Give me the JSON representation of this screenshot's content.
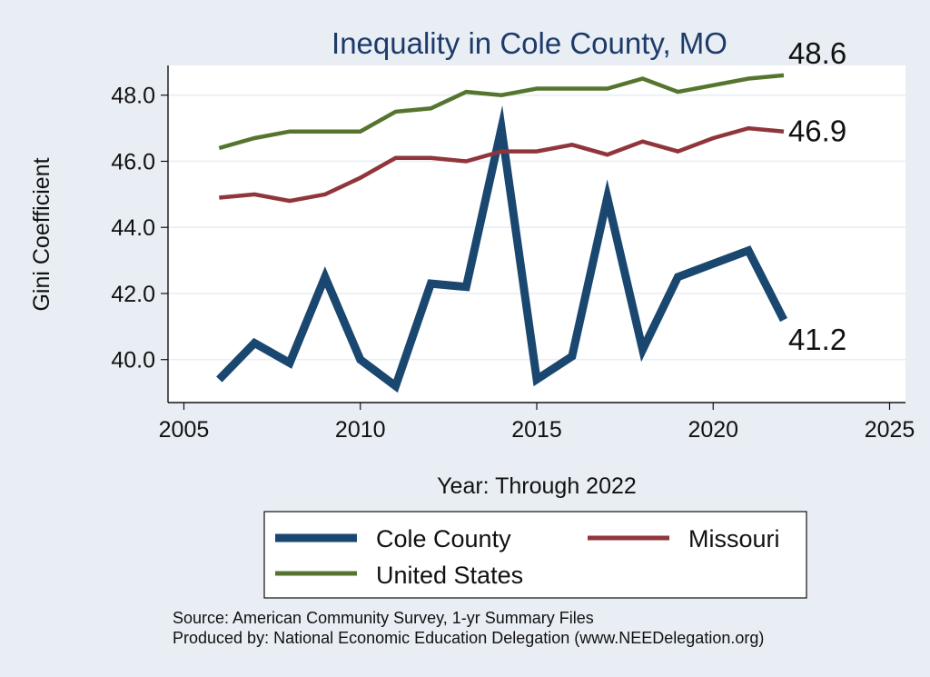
{
  "chart_data": {
    "type": "line",
    "title": "Inequality in Cole County, MO",
    "xlabel": "Year: Through 2022",
    "ylabel": "Gini Coefficient",
    "xlim": [
      2005,
      2025
    ],
    "ylim": [
      38.7,
      48.9
    ],
    "x_ticks": [
      2005,
      2010,
      2015,
      2020,
      2025
    ],
    "y_ticks": [
      40.0,
      42.0,
      44.0,
      46.0,
      48.0
    ],
    "y_tick_labels": [
      "40.0",
      "42.0",
      "44.0",
      "46.0",
      "48.0"
    ],
    "grid": true,
    "legend_position": "bottom",
    "series": [
      {
        "name": "Cole County",
        "color": "#1a476f",
        "x": [
          2006,
          2007,
          2008,
          2009,
          2010,
          2011,
          2012,
          2013,
          2014,
          2015,
          2016,
          2017,
          2018,
          2019,
          2020,
          2021,
          2022
        ],
        "values": [
          39.4,
          40.5,
          39.9,
          42.5,
          40.0,
          39.2,
          42.3,
          42.2,
          47.0,
          39.4,
          40.1,
          44.9,
          40.3,
          42.5,
          42.9,
          43.3,
          41.2
        ],
        "end_label": "41.2"
      },
      {
        "name": "Missouri",
        "color": "#90353b",
        "x": [
          2006,
          2007,
          2008,
          2009,
          2010,
          2011,
          2012,
          2013,
          2014,
          2015,
          2016,
          2017,
          2018,
          2019,
          2020,
          2021,
          2022
        ],
        "values": [
          44.9,
          45.0,
          44.8,
          45.0,
          45.5,
          46.1,
          46.1,
          46.0,
          46.3,
          46.3,
          46.5,
          46.2,
          46.6,
          46.3,
          46.7,
          47.0,
          46.9
        ],
        "end_label": "46.9"
      },
      {
        "name": "United States",
        "color": "#55752f",
        "x": [
          2006,
          2007,
          2008,
          2009,
          2010,
          2011,
          2012,
          2013,
          2014,
          2015,
          2016,
          2017,
          2018,
          2019,
          2020,
          2021,
          2022
        ],
        "values": [
          46.4,
          46.7,
          46.9,
          46.9,
          46.9,
          47.5,
          47.6,
          48.1,
          48.0,
          48.2,
          48.2,
          48.2,
          48.5,
          48.1,
          48.3,
          48.5,
          48.6
        ],
        "end_label": "48.6"
      }
    ],
    "source_lines": [
      "Source: American Community Survey, 1-yr Summary Files",
      "Produced by: National Economic Education Delegation (www.NEEDelegation.org)"
    ]
  }
}
